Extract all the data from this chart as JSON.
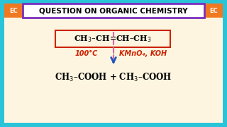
{
  "bg_outer": "#29c4d8",
  "bg_inner": "#fdf5e0",
  "title_text": "QUESTION ON ORGANIC CHEMISTRY",
  "title_box_edge": "#7b2fbe",
  "title_box_face": "white",
  "title_fontsize": 7.5,
  "ec_label": "EC",
  "ec_bg": "#f07820",
  "ec_text_color": "white",
  "ec_fontsize": 6,
  "condition_left": "100°C",
  "condition_right": "KMnO₄, KOH",
  "condition_color": "#cc2200",
  "arrow_color": "#2255bb",
  "reactant_box_color": "#cc2200",
  "dashed_line_color": "#dd66aa",
  "reactant_fontsize": 8,
  "product_fontsize": 8.5,
  "condition_fontsize": 7
}
